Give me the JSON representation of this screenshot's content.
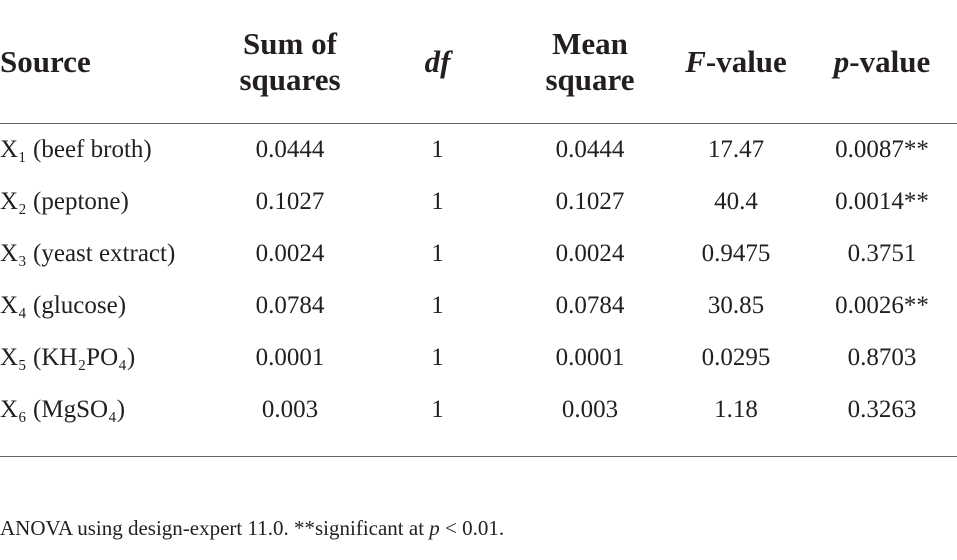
{
  "table": {
    "header": [
      [
        "Source"
      ],
      [
        "Sum of",
        "squares"
      ],
      [
        "df"
      ],
      [
        "Mean",
        "square"
      ],
      [
        "F-value"
      ],
      [
        "p-value"
      ]
    ],
    "rows": [
      [
        "X₁ (beef broth)",
        "0.0444",
        "1",
        "0.0444",
        "17.47",
        "0.0087**"
      ],
      [
        "X₂ (peptone)",
        "0.1027",
        "1",
        "0.1027",
        "40.4",
        "0.0014**"
      ],
      [
        "X₃ (yeast extract)",
        "0.0024",
        "1",
        "0.0024",
        "0.9475",
        "0.3751"
      ],
      [
        "X₄ (glucose)",
        "0.0784",
        "1",
        "0.0784",
        "30.85",
        "0.0026**"
      ],
      [
        "X₅ (KH₂PO₄)",
        "0.0001",
        "1",
        "0.0001",
        "0.0295",
        "0.8703"
      ],
      [
        "X₆ (MgSO₄)",
        "0.003",
        "1",
        "0.003",
        "1.18",
        "0.3263"
      ]
    ],
    "note": [
      "ANOVA using design-expert 11.0. **significant at ",
      "p",
      " < 0.01."
    ]
  }
}
